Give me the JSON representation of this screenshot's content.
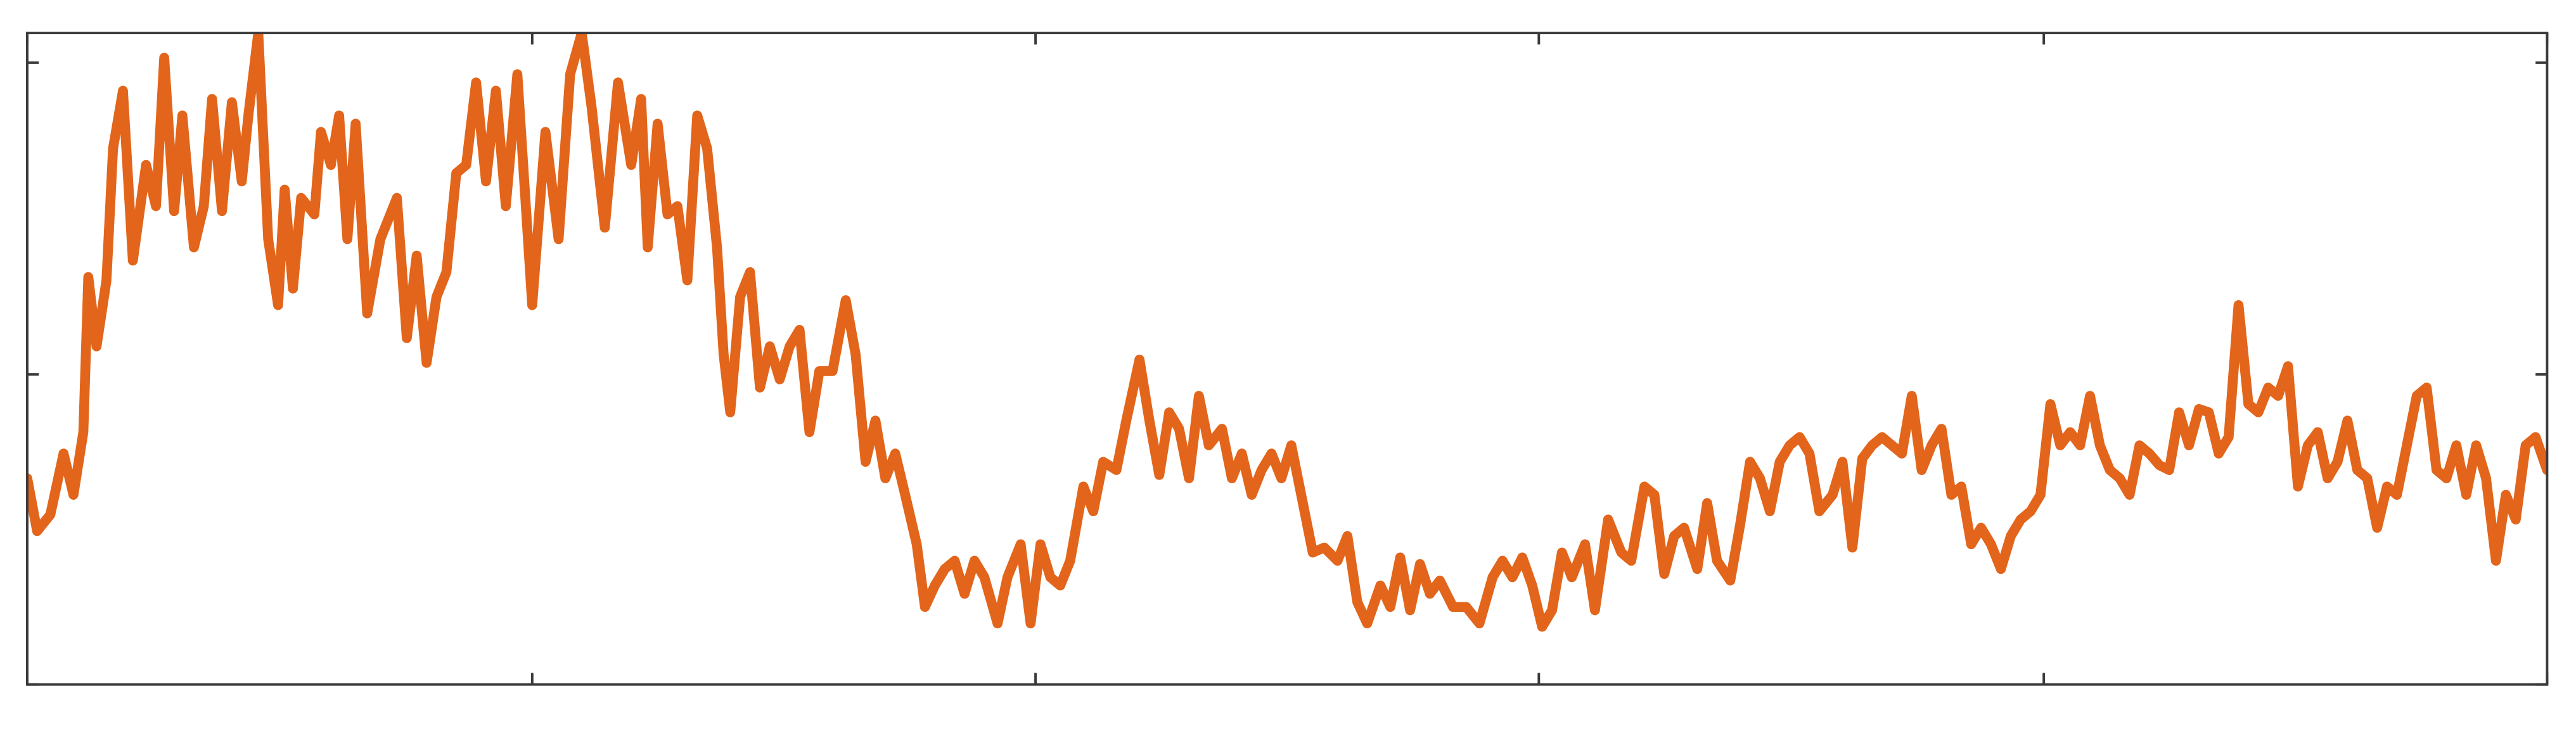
{
  "chart_data": {
    "type": "line",
    "x": [
      0,
      6,
      14,
      22,
      28,
      34,
      37,
      42,
      48,
      52,
      58,
      64,
      72,
      78,
      83,
      89,
      94,
      101,
      107,
      112,
      118,
      124,
      130,
      134,
      140,
      146,
      152,
      156,
      161,
      166,
      174,
      178,
      184,
      189,
      194,
      199,
      206,
      214,
      224,
      230,
      236,
      242,
      248,
      254,
      260,
      266,
      272,
      278,
      284,
      290,
      297,
      306,
      314,
      322,
      329,
      336,
      342,
      350,
      358,
      366,
      372,
      376,
      382,
      388,
      394,
      400,
      406,
      412,
      418,
      422,
      426,
      432,
      438,
      444,
      450,
      456,
      462,
      468,
      474,
      480,
      488,
      496,
      502,
      508,
      514,
      520,
      526,
      532,
      539,
      544,
      550,
      556,
      562,
      568,
      574,
      580,
      588,
      594,
      602,
      608,
      614,
      620,
      626,
      632,
      640,
      646,
      652,
      660,
      666,
      674,
      680,
      686,
      692,
      698,
      704,
      710,
      716,
      724,
      730,
      736,
      742,
      748,
      754,
      760,
      766,
      772,
      779,
      786,
      794,
      800,
      806,
      812,
      820,
      826,
      832,
      838,
      844,
      850,
      856,
      864,
      872,
      880,
      888,
      894,
      900,
      906,
      912,
      918,
      924,
      930,
      936,
      944,
      950,
      958,
      966,
      972,
      980,
      986,
      992,
      998,
      1004,
      1012,
      1018,
      1024,
      1032,
      1038,
      1044,
      1050,
      1056,
      1062,
      1068,
      1074,
      1080,
      1086,
      1094,
      1100,
      1106,
      1112,
      1118,
      1124,
      1130,
      1136,
      1142,
      1148,
      1154,
      1160,
      1166,
      1172,
      1178,
      1184,
      1190,
      1196,
      1202,
      1208,
      1214,
      1220,
      1226,
      1232,
      1238,
      1244,
      1250,
      1256,
      1262,
      1268,
      1274,
      1280,
      1286,
      1292,
      1298,
      1304,
      1310,
      1316,
      1322,
      1328,
      1334,
      1340,
      1346,
      1352,
      1358,
      1364,
      1370,
      1376,
      1382,
      1388,
      1394,
      1400,
      1406,
      1412,
      1418,
      1424,
      1430,
      1436,
      1442,
      1448,
      1454,
      1460,
      1466,
      1472,
      1478,
      1484,
      1490,
      1496,
      1502,
      1508,
      1514,
      1520,
      1527
    ],
    "values": [
      125,
      93,
      103,
      140,
      115,
      153,
      247,
      205,
      245,
      325,
      360,
      257,
      315,
      290,
      380,
      287,
      345,
      265,
      290,
      355,
      287,
      353,
      305,
      345,
      395,
      270,
      230,
      300,
      240,
      295,
      285,
      335,
      315,
      345,
      270,
      340,
      225,
      270,
      295,
      210,
      260,
      195,
      235,
      250,
      310,
      315,
      365,
      305,
      360,
      290,
      370,
      230,
      335,
      270,
      370,
      395,
      350,
      277,
      365,
      315,
      355,
      265,
      340,
      285,
      290,
      245,
      345,
      325,
      265,
      200,
      165,
      235,
      250,
      180,
      205,
      185,
      205,
      215,
      153,
      190,
      190,
      233,
      200,
      135,
      160,
      125,
      140,
      115,
      85,
      47,
      60,
      70,
      75,
      55,
      75,
      65,
      37,
      65,
      85,
      37,
      85,
      65,
      60,
      75,
      120,
      105,
      135,
      130,
      160,
      197,
      160,
      127,
      165,
      155,
      125,
      175,
      145,
      155,
      125,
      140,
      115,
      130,
      140,
      125,
      145,
      115,
      80,
      83,
      75,
      90,
      50,
      37,
      60,
      47,
      77,
      45,
      73,
      55,
      63,
      47,
      47,
      37,
      65,
      75,
      65,
      77,
      60,
      35,
      45,
      80,
      65,
      85,
      45,
      100,
      80,
      75,
      120,
      115,
      67,
      90,
      95,
      70,
      110,
      75,
      63,
      97,
      135,
      125,
      105,
      135,
      145,
      150,
      140,
      105,
      115,
      135,
      83,
      137,
      145,
      150,
      145,
      140,
      175,
      130,
      145,
      155,
      115,
      120,
      85,
      95,
      85,
      70,
      90,
      100,
      105,
      115,
      170,
      145,
      153,
      145,
      175,
      145,
      130,
      125,
      115,
      145,
      140,
      133,
      130,
      165,
      145,
      167,
      165,
      140,
      150,
      230,
      170,
      165,
      180,
      175,
      193,
      120,
      145,
      153,
      125,
      135,
      160,
      130,
      125,
      95,
      120,
      115,
      145,
      175,
      180,
      130,
      125,
      145,
      115,
      145,
      125,
      75,
      115,
      100,
      145,
      150,
      130
    ],
    "color": "#e2651b",
    "xlim": [
      0,
      1527
    ],
    "ylim": [
      0,
      395
    ],
    "xticks": [
      0,
      306,
      611,
      916,
      1222,
      1527
    ],
    "yticks": [
      0,
      188,
      377
    ],
    "grid": false
  }
}
